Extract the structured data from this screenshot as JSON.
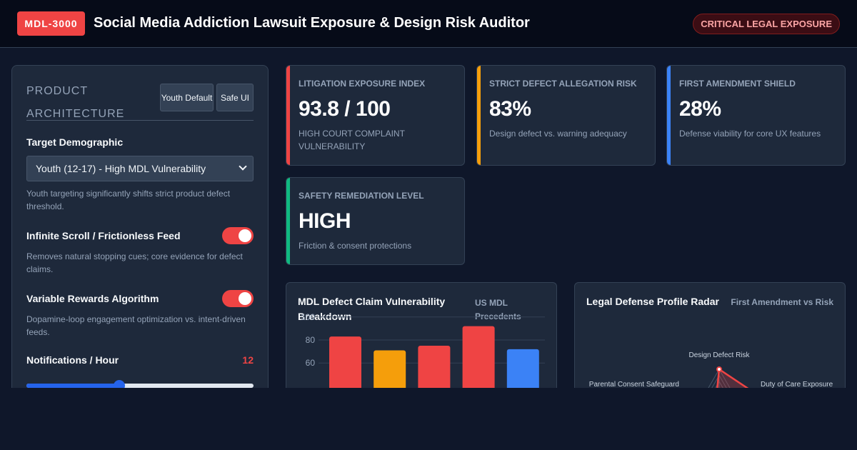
{
  "header": {
    "badge": "MDL-3000",
    "title": "Social Media Addiction Lawsuit Exposure & Design Risk Auditor",
    "alert": "CRITICAL LEGAL EXPOSURE"
  },
  "sidebar": {
    "title": "PRODUCT ARCHITECTURE",
    "presets": {
      "youth_default": "Youth Default",
      "safe_ui": "Safe UI"
    },
    "target": {
      "label": "Target Demographic",
      "selected": "Youth (12-17) - High MDL Vulnerability",
      "help": "Youth targeting significantly shifts strict product defect threshold."
    },
    "infinite_scroll": {
      "label": "Infinite Scroll / Frictionless Feed",
      "enabled": true,
      "help": "Removes natural stopping cues; core evidence for defect claims."
    },
    "variable_rewards": {
      "label": "Variable Rewards Algorithm",
      "enabled": true,
      "help": "Dopamine-loop engagement optimization vs. intent-driven feeds."
    },
    "notifications": {
      "label": "Notifications / Hour",
      "value": "12",
      "slider_fraction": 0.41
    }
  },
  "metrics": [
    {
      "title": "LITIGATION EXPOSURE INDEX",
      "value": "93.8 / 100",
      "sub": "HIGH COURT COMPLAINT VULNERABILITY",
      "color": "#ef4444"
    },
    {
      "title": "STRICT DEFECT ALLEGATION RISK",
      "value": "83%",
      "sub": "Design defect vs. warning adequacy",
      "color": "#f59e0b"
    },
    {
      "title": "FIRST AMENDMENT SHIELD",
      "value": "28%",
      "sub": "Defense viability for core UX features",
      "color": "#3b82f6"
    },
    {
      "title": "SAFETY REMEDIATION LEVEL",
      "value": "HIGH",
      "sub": "Friction & consent protections",
      "color": "#10b981"
    }
  ],
  "bar_panel": {
    "title": "MDL Defect Claim Vulnerability Breakdown",
    "subtitle": "US MDL Precedents"
  },
  "radar_panel": {
    "title": "Legal Defense Profile Radar",
    "subtitle": "First Amendment vs Risk"
  },
  "chart_data": [
    {
      "type": "bar",
      "ylim": [
        0,
        100
      ],
      "yticks": [
        100,
        80,
        60
      ],
      "values": [
        83,
        71,
        75,
        92,
        72
      ],
      "colors": [
        "#ef4444",
        "#f59e0b",
        "#ef4444",
        "#ef4444",
        "#3b82f6"
      ]
    },
    {
      "type": "radar",
      "axes": [
        "Design Defect Risk",
        "Duty of Care Exposure",
        "Parental Consent Safeguard"
      ],
      "series_color": "#ef4444"
    }
  ]
}
